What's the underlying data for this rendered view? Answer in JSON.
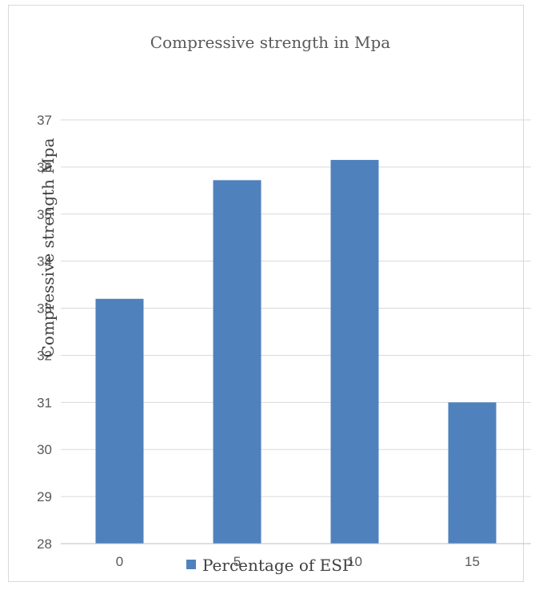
{
  "chart_data": {
    "type": "bar",
    "title": "Compressive strength  in Mpa",
    "ylabel": "Compressive strength  Mpa",
    "xlabel": "",
    "categories": [
      "0",
      "5",
      "10",
      "15"
    ],
    "series": [
      {
        "name": "Percentage  of ESP",
        "values": [
          33.2,
          35.72,
          36.15,
          31.0
        ]
      }
    ],
    "ylim": [
      28,
      37
    ],
    "yticks": [
      "28",
      "29",
      "30",
      "31",
      "32",
      "33",
      "34",
      "35",
      "36",
      "37"
    ],
    "grid": true,
    "legend_position": "bottom",
    "bar_color": "#4f81bd"
  }
}
